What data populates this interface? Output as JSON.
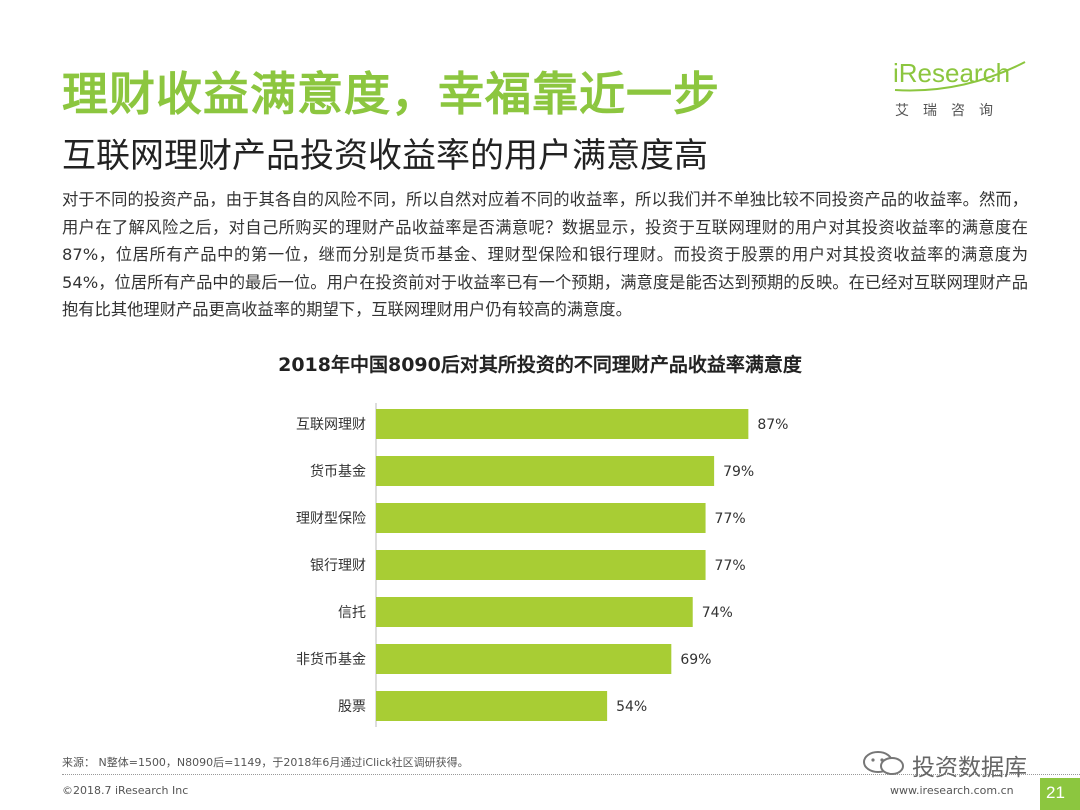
{
  "header": {
    "title": "理财收益满意度，幸福靠近一步",
    "subtitle": "互联网理财产品投资收益率的用户满意度高"
  },
  "logo": {
    "main": "iResearch",
    "sub": "艾瑞咨询"
  },
  "body_text": "对于不同的投资产品，由于其各自的风险不同，所以自然对应着不同的收益率，所以我们并不单独比较不同投资产品的收益率。然而，用户在了解风险之后，对自己所购买的理财产品收益率是否满意呢？数据显示，投资于互联网理财的用户对其投资收益率的满意度在87%，位居所有产品中的第一位，继而分别是货币基金、理财型保险和银行理财。而投资于股票的用户对其投资收益率的满意度为54%，位居所有产品中的最后一位。用户在投资前对于收益率已有一个预期，满意度是能否达到预期的反映。在已经对互联网理财产品抱有比其他理财产品更高收益率的期望下，互联网理财用户仍有较高的满意度。",
  "chart_data": {
    "type": "bar",
    "orientation": "horizontal",
    "title": "2018年中国8090后对其所投资的不同理财产品收益率满意度",
    "categories": [
      "互联网理财",
      "货币基金",
      "理财型保险",
      "银行理财",
      "信托",
      "非货币基金",
      "股票"
    ],
    "values": [
      87,
      79,
      77,
      77,
      74,
      69,
      54
    ],
    "value_labels": [
      "87%",
      "79%",
      "77%",
      "77%",
      "74%",
      "69%",
      "54%"
    ],
    "unit": "%",
    "bar_color": "#a8cd34",
    "xlim": [
      0,
      100
    ],
    "grid": false,
    "legend": "none"
  },
  "footer": {
    "note": "来源： N整体=1500，N8090后=1149，于2018年6月通过iClick社区调研获得。",
    "copyright": "©2018.7 iResearch Inc",
    "url": "www.iresearch.com.cn",
    "page": "21",
    "watermark": "投资数据库"
  },
  "colors": {
    "accent": "#8cc63f",
    "bar": "#a8cd34"
  }
}
